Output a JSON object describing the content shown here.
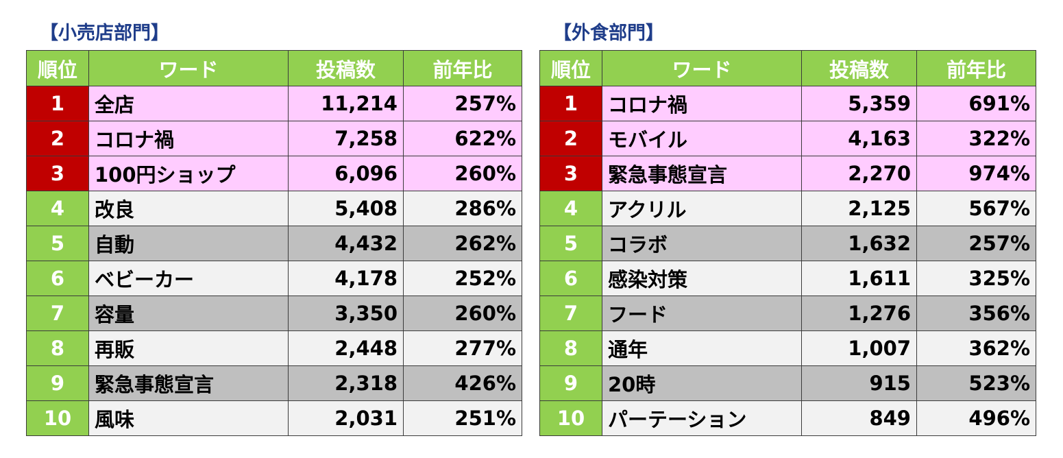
{
  "retail": {
    "title": "【小売店部門】",
    "headers": {
      "rank": "順位",
      "word": "ワード",
      "posts": "投稿数",
      "yoy": "前年比"
    },
    "rows": [
      {
        "rank": "1",
        "word": "全店",
        "posts": "11,214",
        "yoy": "257%"
      },
      {
        "rank": "2",
        "word": "コロナ禍",
        "posts": "7,258",
        "yoy": "622%"
      },
      {
        "rank": "3",
        "word": "100円ショップ",
        "posts": "6,096",
        "yoy": "260%"
      },
      {
        "rank": "4",
        "word": "改良",
        "posts": "5,408",
        "yoy": "286%"
      },
      {
        "rank": "5",
        "word": "自動",
        "posts": "4,432",
        "yoy": "262%"
      },
      {
        "rank": "6",
        "word": "ベビーカー",
        "posts": "4,178",
        "yoy": "252%"
      },
      {
        "rank": "7",
        "word": "容量",
        "posts": "3,350",
        "yoy": "260%"
      },
      {
        "rank": "8",
        "word": "再販",
        "posts": "2,448",
        "yoy": "277%"
      },
      {
        "rank": "9",
        "word": "緊急事態宣言",
        "posts": "2,318",
        "yoy": "426%"
      },
      {
        "rank": "10",
        "word": "風味",
        "posts": "2,031",
        "yoy": "251%"
      }
    ]
  },
  "food": {
    "title": "【外食部門】",
    "headers": {
      "rank": "順位",
      "word": "ワード",
      "posts": "投稿数",
      "yoy": "前年比"
    },
    "rows": [
      {
        "rank": "1",
        "word": "コロナ禍",
        "posts": "5,359",
        "yoy": "691%"
      },
      {
        "rank": "2",
        "word": "モバイル",
        "posts": "4,163",
        "yoy": "322%"
      },
      {
        "rank": "3",
        "word": "緊急事態宣言",
        "posts": "2,270",
        "yoy": "974%"
      },
      {
        "rank": "4",
        "word": "アクリル",
        "posts": "2,125",
        "yoy": "567%"
      },
      {
        "rank": "5",
        "word": "コラボ",
        "posts": "1,632",
        "yoy": "257%"
      },
      {
        "rank": "6",
        "word": "感染対策",
        "posts": "1,611",
        "yoy": "325%"
      },
      {
        "rank": "7",
        "word": "フード",
        "posts": "1,276",
        "yoy": "356%"
      },
      {
        "rank": "8",
        "word": "通年",
        "posts": "1,007",
        "yoy": "362%"
      },
      {
        "rank": "9",
        "word": "20時",
        "posts": "915",
        "yoy": "523%"
      },
      {
        "rank": "10",
        "word": "パーテーション",
        "posts": "849",
        "yoy": "496%"
      }
    ]
  },
  "colors": {
    "header_green": "#92d050",
    "top3_red": "#c00000",
    "top3_pink": "#ffccff",
    "row_light": "#f2f2f2",
    "row_dark": "#bfbfbf",
    "title_blue": "#1f3d8a"
  }
}
